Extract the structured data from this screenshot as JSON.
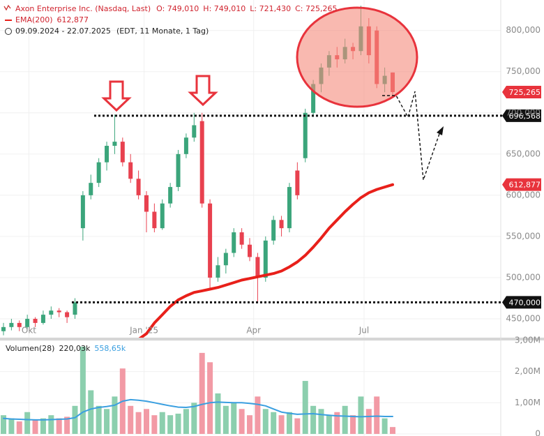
{
  "chart_data": {
    "type": "candlestick",
    "title": "Axon Enterprise Inc. (Nasdaq, Last)",
    "header_values": [
      "O: 749,010",
      "H: 749,010",
      "L: 721,430",
      "C: 725,265"
    ],
    "date_range": "09.09.2024 - 22.07.2025",
    "date_info": "(EDT, 11 Monate, 1 Tag)",
    "up_color": "#3ba57b",
    "down_color": "#e8414f",
    "open": [
      435,
      440,
      445,
      440,
      450,
      445,
      455,
      460,
      458,
      455,
      560,
      600,
      615,
      640,
      660,
      665,
      640,
      620,
      600,
      580,
      560,
      590,
      610,
      650,
      670,
      690,
      590,
      500,
      515,
      530,
      555,
      540,
      525,
      500,
      545,
      570,
      560,
      630,
      645,
      700,
      735,
      755,
      770,
      765,
      780,
      775,
      805,
      800,
      735,
      749.01
    ],
    "high": [
      445,
      450,
      448,
      455,
      452,
      460,
      465,
      463,
      460,
      475,
      605,
      625,
      645,
      665,
      698,
      670,
      650,
      630,
      605,
      590,
      595,
      615,
      655,
      675,
      700,
      700,
      595,
      525,
      535,
      560,
      560,
      548,
      530,
      550,
      575,
      575,
      615,
      640,
      705,
      740,
      760,
      775,
      780,
      790,
      785,
      830,
      815,
      805,
      755,
      749.01
    ],
    "low": [
      430,
      436,
      435,
      438,
      440,
      443,
      450,
      452,
      445,
      450,
      545,
      595,
      610,
      630,
      650,
      635,
      615,
      595,
      555,
      555,
      558,
      585,
      605,
      645,
      665,
      585,
      485,
      495,
      505,
      525,
      535,
      520,
      470,
      495,
      540,
      550,
      555,
      595,
      640,
      695,
      725,
      745,
      755,
      760,
      765,
      770,
      760,
      730,
      725,
      721.43
    ],
    "close": [
      440,
      445,
      440,
      450,
      445,
      455,
      460,
      458,
      452,
      470,
      600,
      615,
      640,
      660,
      665,
      640,
      620,
      600,
      580,
      560,
      590,
      610,
      650,
      670,
      685,
      590,
      500,
      515,
      530,
      555,
      540,
      525,
      500,
      545,
      570,
      560,
      610,
      600,
      700,
      735,
      755,
      770,
      765,
      780,
      775,
      805,
      770,
      735,
      745,
      725.265
    ],
    "ylim": [
      428,
      837
    ],
    "yticks": [
      {
        "value": 450,
        "label": "450,000"
      },
      {
        "value": 500,
        "label": "500,000"
      },
      {
        "value": 550,
        "label": "550,000"
      },
      {
        "value": 600,
        "label": "600,000"
      },
      {
        "value": 650,
        "label": "650,000"
      },
      {
        "value": 700,
        "label": "700,000"
      },
      {
        "value": 750,
        "label": "750,000"
      },
      {
        "value": 800,
        "label": "800,000"
      }
    ],
    "xlim": [
      0,
      49
    ],
    "xticks": [
      {
        "value": 3.2,
        "label": "Okt"
      },
      {
        "value": 17.7,
        "label": "Jan '25"
      },
      {
        "value": 31.5,
        "label": "Apr"
      },
      {
        "value": 45.4,
        "label": "Jul"
      }
    ],
    "ema": {
      "name": "EMA(200)",
      "last_label": "612,877",
      "last_value": 612.877,
      "color": "#e8201a",
      "values": [
        null,
        null,
        null,
        null,
        null,
        null,
        null,
        null,
        null,
        null,
        null,
        null,
        null,
        null,
        null,
        null,
        null,
        425,
        432,
        445,
        455,
        465,
        473,
        478,
        482,
        484,
        486,
        488,
        491,
        494,
        497,
        499,
        501,
        503,
        505,
        508,
        513,
        519,
        527,
        537,
        548,
        560,
        570,
        580,
        589,
        597,
        603,
        607,
        610,
        612.877
      ]
    },
    "price_markers": [
      {
        "value": 725.265,
        "label": "725,265",
        "color": "#e8333c"
      },
      {
        "value": 696.568,
        "label": "696,568",
        "color": "#111111"
      },
      {
        "value": 612.877,
        "label": "612,877",
        "color": "#e8333c"
      },
      {
        "value": 470,
        "label": "470,000",
        "color": "#111111"
      }
    ],
    "volume": {
      "name": "Volumen(28)",
      "last_label": "220,03k",
      "ma_label": "558,65k",
      "ma_color": "#3a9fe0",
      "up_color": "#8ccfae",
      "down_color": "#f29aa5",
      "values": [
        600000,
        500000,
        400000,
        700000,
        450000,
        500000,
        600000,
        500000,
        550000,
        900000,
        2800000,
        1400000,
        900000,
        800000,
        1200000,
        2100000,
        900000,
        700000,
        800000,
        600000,
        700000,
        600000,
        650000,
        800000,
        1000000,
        2600000,
        2300000,
        1300000,
        900000,
        1000000,
        800000,
        600000,
        1200000,
        800000,
        700000,
        600000,
        700000,
        500000,
        1700000,
        900000,
        800000,
        600000,
        700000,
        900000,
        600000,
        1200000,
        800000,
        1200000,
        500000,
        220030
      ],
      "ma": [
        500000,
        480000,
        470000,
        460000,
        450000,
        450000,
        460000,
        470000,
        480000,
        520000,
        700000,
        800000,
        850000,
        880000,
        920000,
        1050000,
        1100000,
        1080000,
        1050000,
        1000000,
        950000,
        900000,
        860000,
        850000,
        880000,
        950000,
        1000000,
        1020000,
        1010000,
        1000000,
        1000000,
        980000,
        950000,
        900000,
        800000,
        700000,
        660000,
        630000,
        640000,
        650000,
        620000,
        600000,
        580000,
        570000,
        560000,
        550000,
        560000,
        570000,
        560000,
        558650
      ],
      "ylim": [
        0,
        3000000
      ],
      "yticks": [
        0,
        {
          "value": 1000000,
          "label": "1,00M"
        },
        {
          "value": 2000000,
          "label": "2,00M"
        },
        {
          "value": 3000000,
          "label": "3,00M"
        }
      ]
    }
  }
}
